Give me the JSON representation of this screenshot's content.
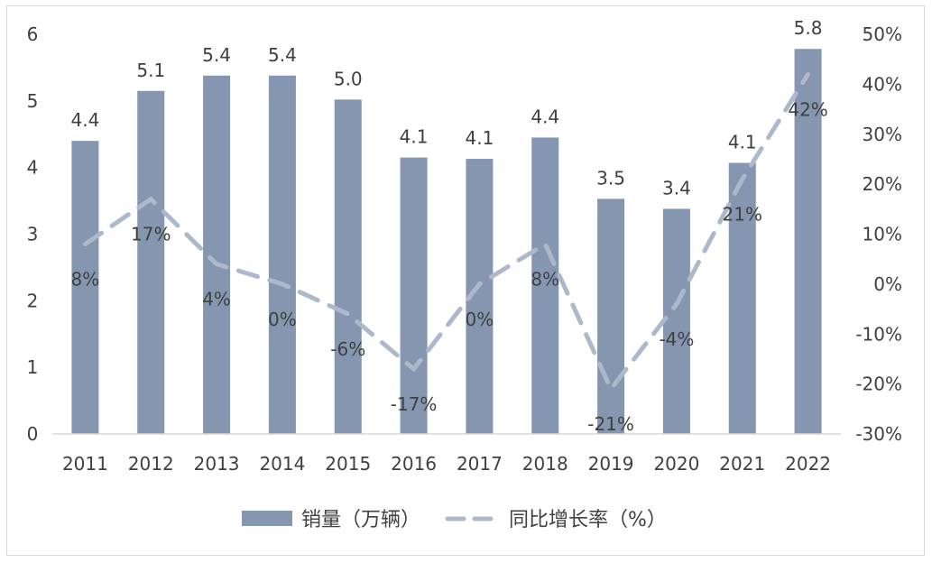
{
  "chart_data": {
    "type": "bar",
    "categories": [
      "2011",
      "2012",
      "2013",
      "2014",
      "2015",
      "2016",
      "2017",
      "2018",
      "2019",
      "2020",
      "2021",
      "2022"
    ],
    "series": [
      {
        "name": "销量（万辆）",
        "type": "bar",
        "axis": "left",
        "values": [
          4.4,
          5.15,
          5.38,
          5.38,
          5.02,
          4.15,
          4.13,
          4.45,
          3.53,
          3.38,
          4.07,
          5.78
        ],
        "labels": [
          "4.4",
          "5.1",
          "5.4",
          "5.4",
          "5.0",
          "4.1",
          "4.1",
          "4.4",
          "3.5",
          "3.4",
          "4.1",
          "5.8"
        ],
        "color": "#8496b0"
      },
      {
        "name": "同比增长率（%）",
        "type": "line",
        "style": "dashed",
        "axis": "right",
        "values": [
          8,
          17,
          4,
          0,
          -6,
          -17,
          0,
          8,
          -21,
          -4,
          21,
          42
        ],
        "labels": [
          "8%",
          "17%",
          "4%",
          "0%",
          "-6%",
          "-17%",
          "0%",
          "8%",
          "-21%",
          "-4%",
          "21%",
          "42%"
        ],
        "color": "#adb9ca"
      }
    ],
    "y_left": {
      "ylim": [
        0,
        6
      ],
      "ticks": [
        "0",
        "1",
        "2",
        "3",
        "4",
        "5",
        "6"
      ]
    },
    "y_right": {
      "ylim": [
        -30,
        50
      ],
      "ticks": [
        "-30%",
        "-20%",
        "-10%",
        "0%",
        "10%",
        "20%",
        "30%",
        "40%",
        "50%"
      ]
    },
    "title": "",
    "xlabel": "",
    "ylabel": "",
    "grid": false,
    "legend_position": "bottom"
  }
}
